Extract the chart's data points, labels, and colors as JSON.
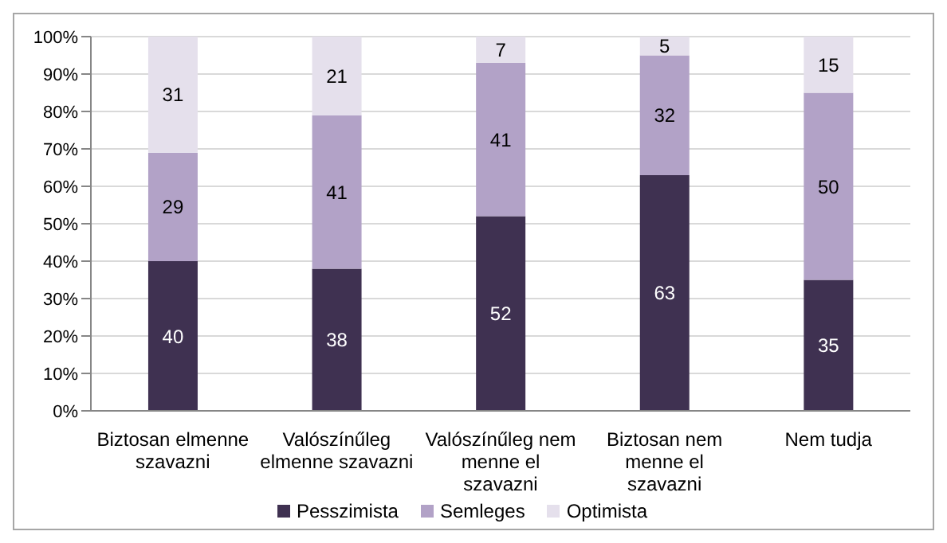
{
  "chart_data": {
    "type": "bar",
    "stacked": true,
    "categories": [
      "Biztosan elmenne szavazni",
      "Valószínűleg elmenne szavazni",
      "Valószínűleg nem menne el szavazni",
      "Biztosan nem menne el szavazni",
      "Nem tudja"
    ],
    "series": [
      {
        "name": "Pesszimista",
        "color": "#3f3151",
        "values": [
          40,
          38,
          52,
          63,
          35
        ]
      },
      {
        "name": "Semleges",
        "color": "#b2a2c7",
        "values": [
          29,
          41,
          41,
          32,
          50
        ]
      },
      {
        "name": "Optimista",
        "color": "#e5e0ec",
        "values": [
          31,
          21,
          7,
          5,
          15
        ]
      }
    ],
    "ylim": [
      0,
      100
    ],
    "yticks": [
      {
        "value": 0,
        "label": "0%"
      },
      {
        "value": 10,
        "label": "10%"
      },
      {
        "value": 20,
        "label": "20%"
      },
      {
        "value": 30,
        "label": "30%"
      },
      {
        "value": 40,
        "label": "40%"
      },
      {
        "value": 50,
        "label": "50%"
      },
      {
        "value": 60,
        "label": "60%"
      },
      {
        "value": 70,
        "label": "70%"
      },
      {
        "value": 80,
        "label": "80%"
      },
      {
        "value": 90,
        "label": "90%"
      },
      {
        "value": 100,
        "label": "100%"
      }
    ],
    "grid": "y",
    "legend": "bottom",
    "data_labels": true
  }
}
